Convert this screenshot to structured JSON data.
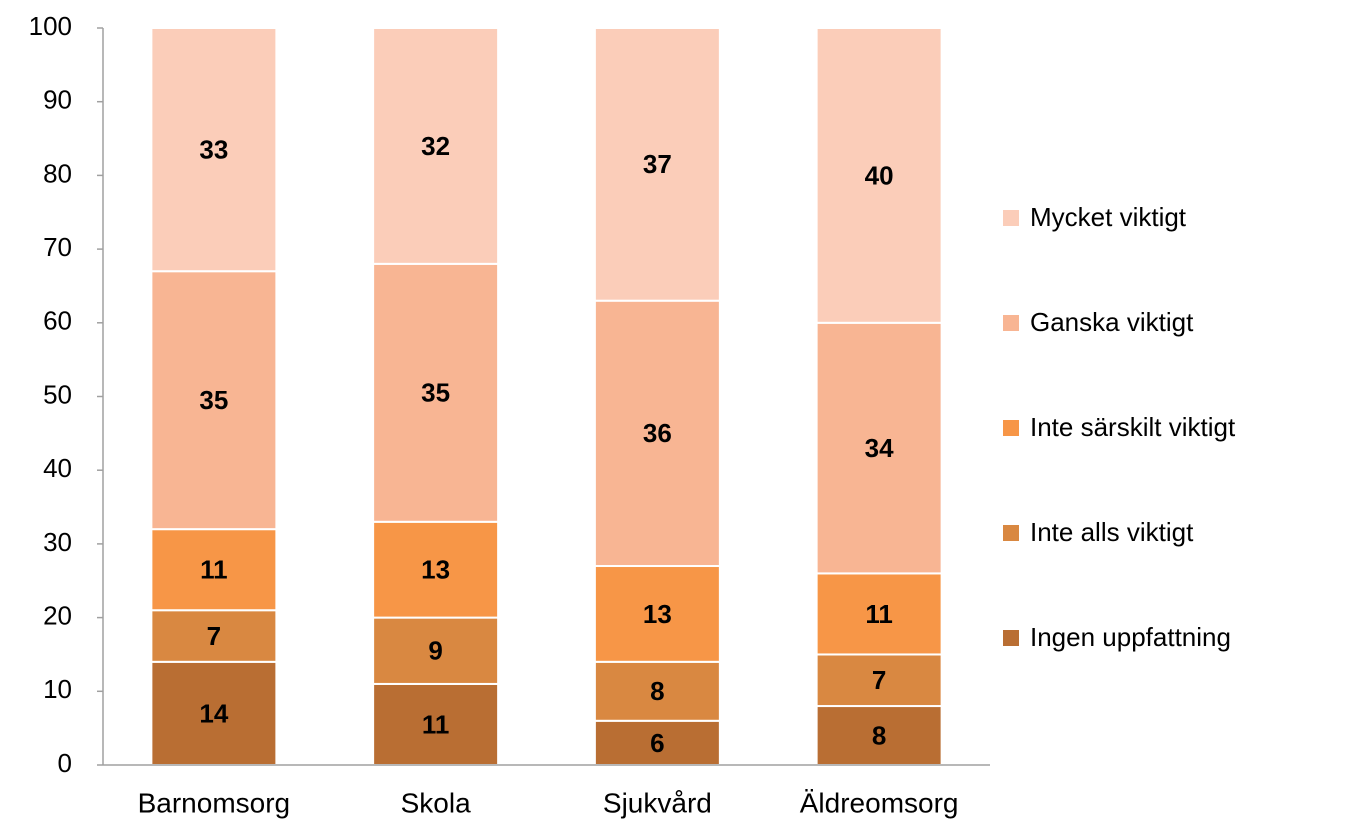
{
  "chart_data": {
    "type": "stacked_bar",
    "categories": [
      "Barnomsorg",
      "Skola",
      "Sjukvård",
      "Äldreomsorg"
    ],
    "series": [
      {
        "name": "Ingen uppfattning",
        "color": "#b96e33",
        "values": [
          14,
          11,
          6,
          8
        ]
      },
      {
        "name": "Inte alls viktigt",
        "color": "#d98841",
        "values": [
          7,
          9,
          8,
          7
        ]
      },
      {
        "name": "Inte särskilt viktigt",
        "color": "#f79647",
        "values": [
          11,
          13,
          13,
          11
        ]
      },
      {
        "name": "Ganska viktigt",
        "color": "#f8b593",
        "values": [
          35,
          35,
          36,
          34
        ]
      },
      {
        "name": "Mycket viktigt",
        "color": "#fbcdb9",
        "values": [
          33,
          32,
          37,
          40
        ]
      }
    ],
    "ylim": [
      0,
      100
    ],
    "yticks": [
      0,
      10,
      20,
      30,
      40,
      50,
      60,
      70,
      80,
      90,
      100
    ],
    "grid": false,
    "legend": "right"
  }
}
